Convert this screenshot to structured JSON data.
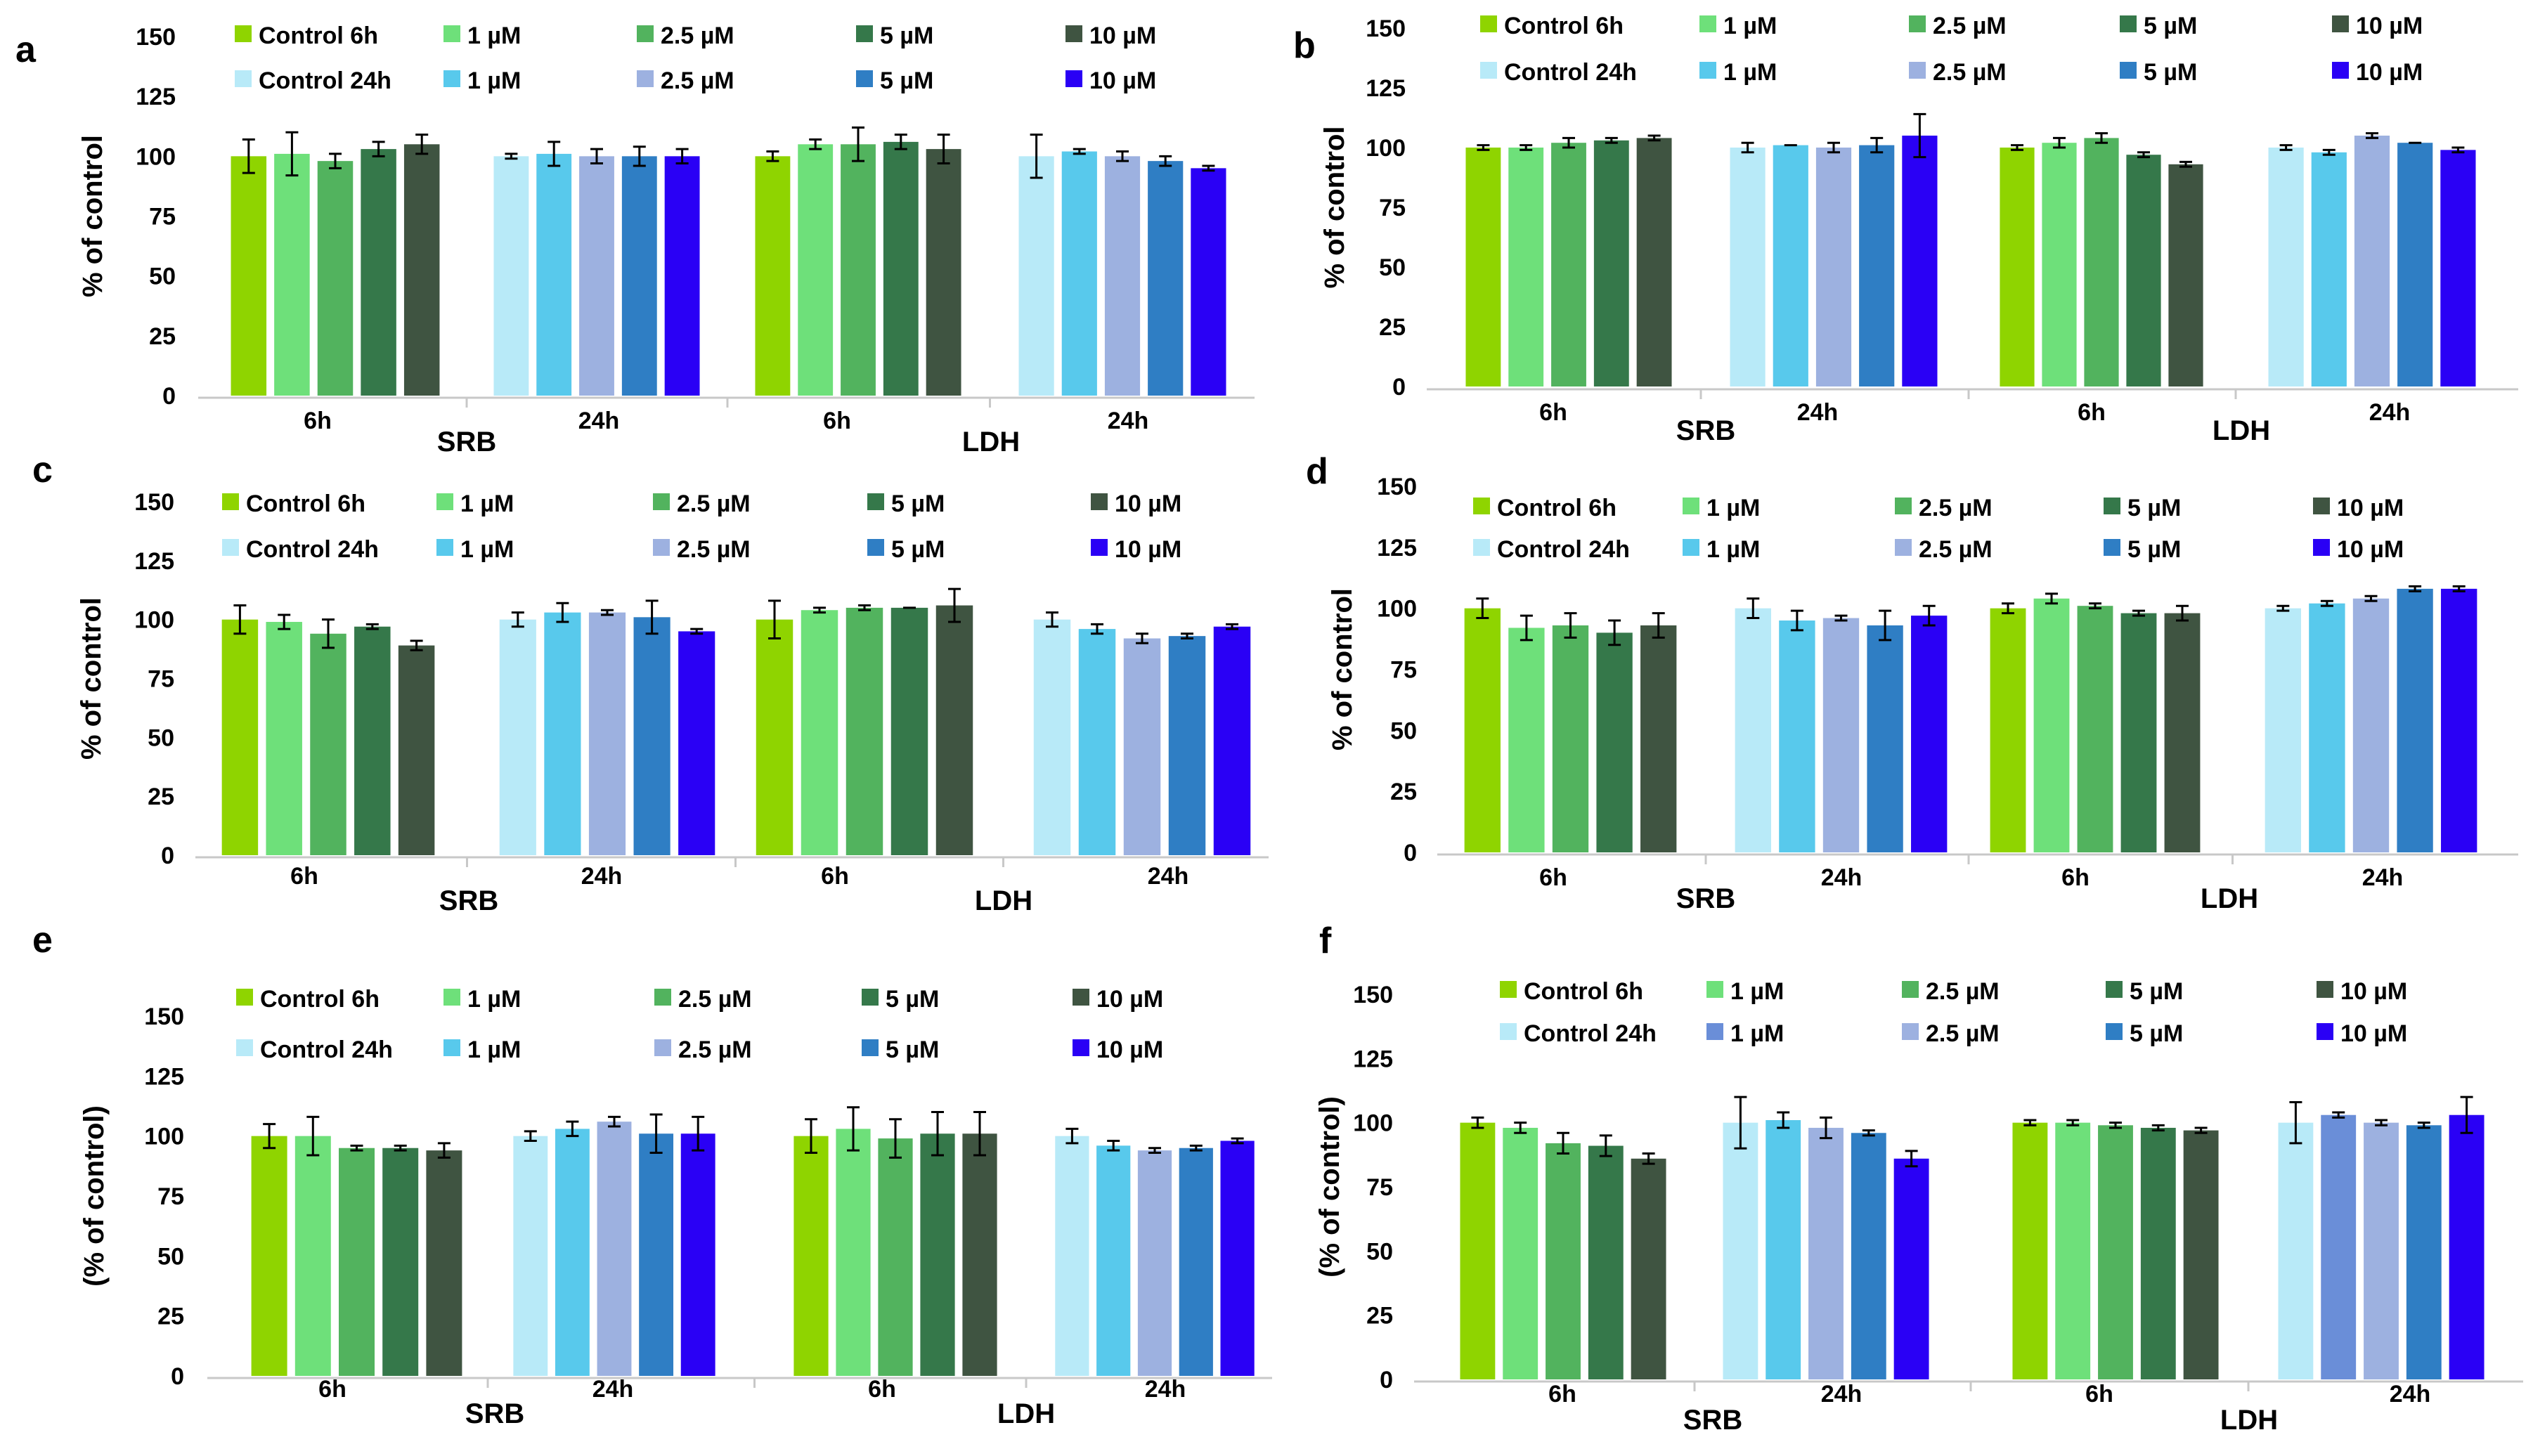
{
  "figure": {
    "legend": {
      "row1": [
        "Control 6h",
        "1 µM",
        "2.5 µM",
        "5 µM",
        "10 µM"
      ],
      "row2": [
        "Control 24h",
        "1 µM",
        "2.5 µM",
        "5 µM",
        "10 µM"
      ]
    },
    "colors": {
      "h6": [
        "#8fd400",
        "#6ee07a",
        "#52b35e",
        "#35784a",
        "#3f5441"
      ],
      "h24": [
        "#b8eaf8",
        "#58c9ec",
        "#9db1e0",
        "#2f7ec4",
        "#2a00f5"
      ],
      "h24_f_ldh": [
        "#b8eaf8",
        "#6a8ed8",
        "#9db1e0",
        "#2f7ec4",
        "#2a00f5"
      ]
    },
    "group_labels": [
      "6h",
      "24h",
      "6h",
      "24h"
    ],
    "assay_labels": [
      "SRB",
      "LDH"
    ]
  },
  "chart_data": [
    {
      "panel": "a",
      "type": "bar",
      "ylabel": "% of control",
      "ylim": [
        0,
        150
      ],
      "yticks": [
        "0",
        "25",
        "50",
        "75",
        "100",
        "125",
        "150"
      ],
      "categories": [
        "Control",
        "1 µM",
        "2.5 µM",
        "5 µM",
        "10 µM"
      ],
      "groups": [
        {
          "assay": "SRB",
          "time": "6h",
          "values": [
            100,
            101,
            98,
            103,
            105
          ],
          "errors": [
            7,
            9,
            3,
            3,
            4
          ]
        },
        {
          "assay": "SRB",
          "time": "24h",
          "values": [
            100,
            101,
            100,
            100,
            100
          ],
          "errors": [
            1,
            5,
            3,
            4,
            3
          ]
        },
        {
          "assay": "LDH",
          "time": "6h",
          "values": [
            100,
            105,
            105,
            106,
            103
          ],
          "errors": [
            2,
            2,
            7,
            3,
            6
          ]
        },
        {
          "assay": "LDH",
          "time": "24h",
          "values": [
            100,
            102,
            100,
            98,
            95
          ],
          "errors": [
            9,
            1,
            2,
            2,
            1
          ]
        }
      ]
    },
    {
      "panel": "b",
      "type": "bar",
      "ylabel": "% of control",
      "ylim": [
        0,
        150
      ],
      "yticks": [
        "0",
        "25",
        "50",
        "75",
        "100",
        "125",
        "150"
      ],
      "categories": [
        "Control",
        "1 µM",
        "2.5 µM",
        "5 µM",
        "10 µM"
      ],
      "groups": [
        {
          "assay": "SRB",
          "time": "6h",
          "values": [
            100,
            100,
            102,
            103,
            104
          ],
          "errors": [
            1,
            1,
            2,
            1,
            1
          ]
        },
        {
          "assay": "SRB",
          "time": "24h",
          "values": [
            100,
            101,
            100,
            101,
            105
          ],
          "errors": [
            2,
            0,
            2,
            3,
            9
          ]
        },
        {
          "assay": "LDH",
          "time": "6h",
          "values": [
            100,
            102,
            104,
            97,
            93
          ],
          "errors": [
            1,
            2,
            2,
            1,
            1
          ]
        },
        {
          "assay": "LDH",
          "time": "24h",
          "values": [
            100,
            98,
            105,
            102,
            99
          ],
          "errors": [
            1,
            1,
            1,
            0,
            1
          ]
        }
      ]
    },
    {
      "panel": "c",
      "type": "bar",
      "ylabel": "% of control",
      "ylim": [
        0,
        150
      ],
      "yticks": [
        "0",
        "25",
        "50",
        "75",
        "100",
        "125",
        "150"
      ],
      "categories": [
        "Control",
        "1 µM",
        "2.5 µM",
        "5 µM",
        "10 µM"
      ],
      "groups": [
        {
          "assay": "SRB",
          "time": "6h",
          "values": [
            100,
            99,
            94,
            97,
            89
          ],
          "errors": [
            6,
            3,
            6,
            1,
            2
          ]
        },
        {
          "assay": "SRB",
          "time": "24h",
          "values": [
            100,
            103,
            103,
            101,
            95
          ],
          "errors": [
            3,
            4,
            1,
            7,
            1
          ]
        },
        {
          "assay": "LDH",
          "time": "6h",
          "values": [
            100,
            104,
            105,
            105,
            106
          ],
          "errors": [
            8,
            1,
            1,
            0,
            7
          ]
        },
        {
          "assay": "LDH",
          "time": "24h",
          "values": [
            100,
            96,
            92,
            93,
            97
          ],
          "errors": [
            3,
            2,
            2,
            1,
            1
          ]
        }
      ]
    },
    {
      "panel": "d",
      "type": "bar",
      "ylabel": "% of control",
      "ylim": [
        0,
        150
      ],
      "yticks": [
        "0",
        "25",
        "50",
        "75",
        "100",
        "125",
        "150"
      ],
      "categories": [
        "Control",
        "1 µM",
        "2.5 µM",
        "5 µM",
        "10 µM"
      ],
      "groups": [
        {
          "assay": "SRB",
          "time": "6h",
          "values": [
            100,
            92,
            93,
            90,
            93
          ],
          "errors": [
            4,
            5,
            5,
            5,
            5
          ]
        },
        {
          "assay": "SRB",
          "time": "24h",
          "values": [
            100,
            95,
            96,
            93,
            97
          ],
          "errors": [
            4,
            4,
            1,
            6,
            4
          ]
        },
        {
          "assay": "LDH",
          "time": "6h",
          "values": [
            100,
            104,
            101,
            98,
            98
          ],
          "errors": [
            2,
            2,
            1,
            1,
            3
          ]
        },
        {
          "assay": "LDH",
          "time": "24h",
          "values": [
            100,
            102,
            104,
            108,
            108
          ],
          "errors": [
            1,
            1,
            1,
            1,
            1
          ]
        }
      ]
    },
    {
      "panel": "e",
      "type": "bar",
      "ylabel": "(% of control)",
      "ylim": [
        0,
        150
      ],
      "yticks": [
        "0",
        "25",
        "50",
        "75",
        "100",
        "125",
        "150"
      ],
      "categories": [
        "Control",
        "1 µM",
        "2.5 µM",
        "5 µM",
        "10 µM"
      ],
      "groups": [
        {
          "assay": "SRB",
          "time": "6h",
          "values": [
            100,
            100,
            95,
            95,
            94
          ],
          "errors": [
            5,
            8,
            1,
            1,
            3
          ]
        },
        {
          "assay": "SRB",
          "time": "24h",
          "values": [
            100,
            103,
            106,
            101,
            101
          ],
          "errors": [
            2,
            3,
            2,
            8,
            7
          ]
        },
        {
          "assay": "LDH",
          "time": "6h",
          "values": [
            100,
            103,
            99,
            101,
            101
          ],
          "errors": [
            7,
            9,
            8,
            9,
            9
          ]
        },
        {
          "assay": "LDH",
          "time": "24h",
          "values": [
            100,
            96,
            94,
            95,
            98
          ],
          "errors": [
            3,
            2,
            1,
            1,
            1
          ]
        }
      ]
    },
    {
      "panel": "f",
      "type": "bar",
      "ylabel": "(% of control)",
      "ylim": [
        0,
        150
      ],
      "yticks": [
        "0",
        "25",
        "50",
        "75",
        "100",
        "125",
        "150"
      ],
      "categories": [
        "Control",
        "1 µM",
        "2.5 µM",
        "5 µM",
        "10 µM"
      ],
      "groups": [
        {
          "assay": "SRB",
          "time": "6h",
          "values": [
            100,
            98,
            92,
            91,
            86
          ],
          "errors": [
            2,
            2,
            4,
            4,
            2
          ]
        },
        {
          "assay": "SRB",
          "time": "24h",
          "values": [
            100,
            101,
            98,
            96,
            86
          ],
          "errors": [
            10,
            3,
            4,
            1,
            3
          ]
        },
        {
          "assay": "LDH",
          "time": "6h",
          "values": [
            100,
            100,
            99,
            98,
            97
          ],
          "errors": [
            1,
            1,
            1,
            1,
            1
          ]
        },
        {
          "assay": "LDH",
          "time": "24h",
          "values": [
            100,
            103,
            100,
            99,
            103
          ],
          "errors": [
            8,
            1,
            1,
            1,
            7
          ]
        }
      ]
    }
  ]
}
